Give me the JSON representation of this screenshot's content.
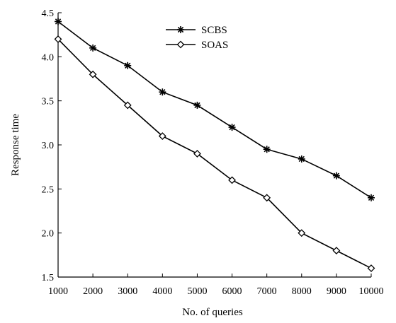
{
  "chart_data": {
    "type": "line",
    "title": "",
    "xlabel": "No. of queries",
    "ylabel": "Response time",
    "x": [
      1000,
      2000,
      3000,
      4000,
      5000,
      6000,
      7000,
      8000,
      9000,
      10000
    ],
    "xlim": [
      1000,
      10000
    ],
    "ylim": [
      1.5,
      4.5
    ],
    "yticks": [
      "1.5",
      "2.0",
      "2.5",
      "3.0",
      "3.5",
      "4.0",
      "4.5"
    ],
    "xticks": [
      "1000",
      "2000",
      "3000",
      "4000",
      "5000",
      "6000",
      "7000",
      "8000",
      "9000",
      "10000"
    ],
    "grid": false,
    "legend_position": "top-center",
    "series": [
      {
        "name": "SCBS",
        "marker": "star",
        "color": "#000000",
        "values": [
          4.4,
          4.1,
          3.9,
          3.6,
          3.45,
          3.2,
          2.95,
          2.84,
          2.65,
          2.4
        ]
      },
      {
        "name": "SOAS",
        "marker": "diamond",
        "color": "#000000",
        "values": [
          4.2,
          3.8,
          3.45,
          3.1,
          2.9,
          2.6,
          2.4,
          2.0,
          1.8,
          1.6
        ]
      }
    ]
  }
}
